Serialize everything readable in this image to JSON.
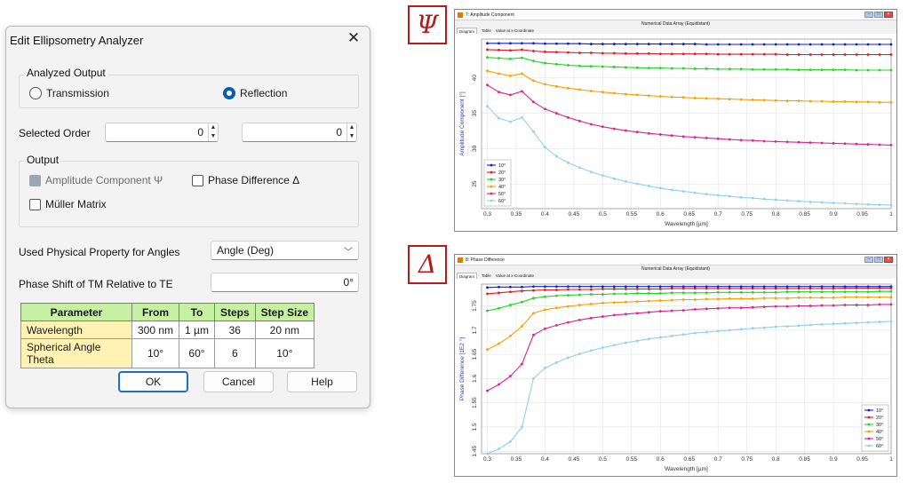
{
  "dialog": {
    "title": "Edit Ellipsometry Analyzer",
    "close_glyph": "✕",
    "analyzed_output": {
      "label": "Analyzed Output",
      "transmission": "Transmission",
      "reflection": "Reflection",
      "selected": "reflection"
    },
    "selected_order": {
      "label": "Selected Order",
      "value1": "0",
      "value2": "0"
    },
    "output": {
      "label": "Output",
      "amplitude": "Amplitude Component Ψ",
      "phase": "Phase Difference Δ",
      "muller": "Müller Matrix"
    },
    "angles": {
      "label": "Used Physical Property for Angles",
      "value": "Angle (Deg)"
    },
    "phase_shift": {
      "label": "Phase Shift of TM Relative to TE",
      "value": "0°"
    },
    "table": {
      "headers": [
        "Parameter",
        "From",
        "To",
        "Steps",
        "Step Size"
      ],
      "rows": [
        [
          "Wavelength",
          "300 nm",
          "1 µm",
          "36",
          "20 nm"
        ],
        [
          "Spherical Angle Theta",
          "10°",
          "60°",
          "6",
          "10°"
        ]
      ]
    },
    "buttons": {
      "ok": "OK",
      "cancel": "Cancel",
      "help": "Help"
    }
  },
  "glyphs": {
    "psi": "Ψ",
    "delta": "Δ"
  },
  "chart_psi_window": {
    "title": "7: Amplitude Component",
    "subtitle": "Numerical Data Array (Equidistant)",
    "tabs": [
      "Diagram",
      "Table",
      "Value at x-Coordinate"
    ]
  },
  "chart_delta_window": {
    "title": "8: Phase Difference",
    "subtitle": "Numerical Data Array (Equidistant)",
    "tabs": [
      "Diagram",
      "Table",
      "Value at x-Coordinate"
    ]
  },
  "series_colors": [
    "#0a1ed8",
    "#e8142a",
    "#1fd81f",
    "#f7a000",
    "#e0208a",
    "#8fd0ef"
  ],
  "chart_data": [
    {
      "type": "line",
      "xlabel": "Wavelength [µm]",
      "ylabel": "Amplitude Component [°]",
      "xlim": [
        0.29,
        1.0
      ],
      "ylim": [
        21.5,
        45.5
      ],
      "xticks": [
        "0.3",
        "0.35",
        "0.4",
        "0.45",
        "0.5",
        "0.55",
        "0.6",
        "0.65",
        "0.7",
        "0.75",
        "0.8",
        "0.85",
        "0.9",
        "0.95",
        "1"
      ],
      "yticks": [
        "25",
        "30",
        "35",
        "40"
      ],
      "legend": "bottom-left",
      "grid": true,
      "x": [
        0.3,
        0.32,
        0.34,
        0.36,
        0.38,
        0.4,
        0.42,
        0.44,
        0.46,
        0.48,
        0.5,
        0.52,
        0.54,
        0.56,
        0.58,
        0.6,
        0.62,
        0.64,
        0.66,
        0.68,
        0.7,
        0.72,
        0.74,
        0.76,
        0.78,
        0.8,
        0.82,
        0.84,
        0.86,
        0.88,
        0.9,
        0.92,
        0.94,
        0.96,
        0.98,
        1.0
      ],
      "series": [
        {
          "name": "10°",
          "values": [
            44.9,
            44.9,
            44.9,
            44.9,
            44.9,
            44.85,
            44.85,
            44.85,
            44.85,
            44.8,
            44.8,
            44.8,
            44.8,
            44.8,
            44.8,
            44.8,
            44.8,
            44.8,
            44.8,
            44.75,
            44.75,
            44.75,
            44.75,
            44.75,
            44.75,
            44.75,
            44.75,
            44.75,
            44.75,
            44.75,
            44.75,
            44.75,
            44.75,
            44.75,
            44.75,
            44.75
          ]
        },
        {
          "name": "20°",
          "values": [
            44.0,
            43.95,
            43.9,
            44.0,
            43.8,
            43.7,
            43.65,
            43.6,
            43.55,
            43.55,
            43.5,
            43.5,
            43.45,
            43.45,
            43.45,
            43.4,
            43.4,
            43.4,
            43.4,
            43.4,
            43.35,
            43.35,
            43.35,
            43.35,
            43.35,
            43.35,
            43.3,
            43.3,
            43.3,
            43.3,
            43.3,
            43.3,
            43.3,
            43.3,
            43.3,
            43.3
          ]
        },
        {
          "name": "30°",
          "values": [
            42.9,
            42.8,
            42.7,
            42.85,
            42.4,
            42.1,
            41.95,
            41.8,
            41.7,
            41.65,
            41.6,
            41.55,
            41.5,
            41.45,
            41.4,
            41.4,
            41.35,
            41.35,
            41.3,
            41.3,
            41.25,
            41.25,
            41.25,
            41.2,
            41.2,
            41.2,
            41.2,
            41.15,
            41.15,
            41.15,
            41.15,
            41.15,
            41.1,
            41.1,
            41.1,
            41.1
          ]
        },
        {
          "name": "40°",
          "values": [
            41.0,
            40.6,
            40.3,
            40.6,
            39.6,
            39.1,
            38.8,
            38.55,
            38.35,
            38.15,
            38.0,
            37.85,
            37.7,
            37.6,
            37.5,
            37.4,
            37.3,
            37.25,
            37.15,
            37.1,
            37.05,
            37.0,
            36.95,
            36.9,
            36.85,
            36.8,
            36.75,
            36.75,
            36.7,
            36.7,
            36.65,
            36.65,
            36.6,
            36.6,
            36.55,
            36.55
          ]
        },
        {
          "name": "50°",
          "values": [
            39.0,
            38.0,
            37.6,
            38.1,
            36.6,
            35.6,
            35.0,
            34.4,
            33.9,
            33.45,
            33.1,
            32.8,
            32.55,
            32.35,
            32.15,
            32.0,
            31.85,
            31.7,
            31.6,
            31.5,
            31.4,
            31.3,
            31.2,
            31.15,
            31.05,
            31.0,
            30.95,
            30.9,
            30.85,
            30.8,
            30.75,
            30.7,
            30.65,
            30.6,
            30.55,
            30.5
          ]
        },
        {
          "name": "60°",
          "values": [
            36.0,
            34.3,
            33.8,
            34.4,
            32.4,
            30.2,
            28.9,
            28.0,
            27.3,
            26.7,
            26.2,
            25.75,
            25.35,
            25.0,
            24.7,
            24.4,
            24.15,
            23.95,
            23.75,
            23.55,
            23.4,
            23.25,
            23.1,
            23.0,
            22.85,
            22.75,
            22.65,
            22.55,
            22.45,
            22.4,
            22.3,
            22.25,
            22.15,
            22.1,
            22.05,
            22.0
          ]
        }
      ]
    },
    {
      "type": "line",
      "xlabel": "Wavelength [µm]",
      "ylabel": "Phase Difference [1E2 °]",
      "xlim": [
        0.29,
        1.0
      ],
      "ylim": [
        1.445,
        1.795
      ],
      "xticks": [
        "0.3",
        "0.35",
        "0.4",
        "0.45",
        "0.5",
        "0.55",
        "0.6",
        "0.65",
        "0.7",
        "0.75",
        "0.8",
        "0.85",
        "0.9",
        "0.95",
        "1"
      ],
      "yticks": [
        "1.45",
        "1.5",
        "1.55",
        "1.6",
        "1.65",
        "1.7",
        "1.75"
      ],
      "legend": "bottom-right",
      "grid": true,
      "x": [
        0.3,
        0.32,
        0.34,
        0.36,
        0.38,
        0.4,
        0.42,
        0.44,
        0.46,
        0.48,
        0.5,
        0.52,
        0.54,
        0.56,
        0.58,
        0.6,
        0.62,
        0.64,
        0.66,
        0.68,
        0.7,
        0.72,
        0.74,
        0.76,
        0.78,
        0.8,
        0.82,
        0.84,
        0.86,
        0.88,
        0.9,
        0.92,
        0.94,
        0.96,
        0.98,
        1.0
      ],
      "series": [
        {
          "name": "10°",
          "values": [
            1.788,
            1.789,
            1.789,
            1.789,
            1.79,
            1.79,
            1.79,
            1.79,
            1.79,
            1.79,
            1.79,
            1.79,
            1.79,
            1.79,
            1.79,
            1.79,
            1.79,
            1.79,
            1.79,
            1.79,
            1.79,
            1.79,
            1.79,
            1.79,
            1.79,
            1.79,
            1.79,
            1.79,
            1.79,
            1.79,
            1.79,
            1.79,
            1.79,
            1.79,
            1.79,
            1.79
          ]
        },
        {
          "name": "20°",
          "values": [
            1.775,
            1.777,
            1.779,
            1.781,
            1.782,
            1.783,
            1.783,
            1.784,
            1.784,
            1.784,
            1.785,
            1.785,
            1.785,
            1.785,
            1.785,
            1.785,
            1.786,
            1.786,
            1.786,
            1.786,
            1.786,
            1.786,
            1.786,
            1.786,
            1.786,
            1.786,
            1.786,
            1.786,
            1.786,
            1.786,
            1.786,
            1.787,
            1.787,
            1.787,
            1.787,
            1.787
          ]
        },
        {
          "name": "30°",
          "values": [
            1.74,
            1.745,
            1.752,
            1.758,
            1.766,
            1.769,
            1.771,
            1.772,
            1.773,
            1.774,
            1.774,
            1.775,
            1.775,
            1.776,
            1.776,
            1.776,
            1.777,
            1.777,
            1.777,
            1.777,
            1.778,
            1.778,
            1.778,
            1.778,
            1.778,
            1.778,
            1.779,
            1.779,
            1.779,
            1.779,
            1.779,
            1.779,
            1.779,
            1.779,
            1.78,
            1.78
          ]
        },
        {
          "name": "40°",
          "values": [
            1.66,
            1.672,
            1.688,
            1.708,
            1.735,
            1.742,
            1.746,
            1.749,
            1.752,
            1.754,
            1.756,
            1.757,
            1.758,
            1.759,
            1.76,
            1.761,
            1.762,
            1.763,
            1.763,
            1.764,
            1.764,
            1.765,
            1.765,
            1.765,
            1.766,
            1.766,
            1.766,
            1.767,
            1.767,
            1.767,
            1.767,
            1.768,
            1.768,
            1.768,
            1.768,
            1.768
          ]
        },
        {
          "name": "50°",
          "values": [
            1.575,
            1.588,
            1.605,
            1.63,
            1.69,
            1.703,
            1.71,
            1.716,
            1.721,
            1.725,
            1.728,
            1.731,
            1.733,
            1.735,
            1.737,
            1.739,
            1.74,
            1.741,
            1.743,
            1.744,
            1.745,
            1.746,
            1.746,
            1.747,
            1.748,
            1.749,
            1.749,
            1.75,
            1.75,
            1.751,
            1.751,
            1.752,
            1.752,
            1.752,
            1.753,
            1.753
          ]
        },
        {
          "name": "60°",
          "values": [
            1.445,
            1.455,
            1.47,
            1.5,
            1.6,
            1.622,
            1.633,
            1.643,
            1.651,
            1.658,
            1.664,
            1.669,
            1.674,
            1.678,
            1.682,
            1.685,
            1.688,
            1.691,
            1.694,
            1.696,
            1.698,
            1.7,
            1.702,
            1.704,
            1.705,
            1.707,
            1.708,
            1.709,
            1.711,
            1.712,
            1.713,
            1.714,
            1.715,
            1.716,
            1.717,
            1.718
          ]
        }
      ]
    }
  ]
}
